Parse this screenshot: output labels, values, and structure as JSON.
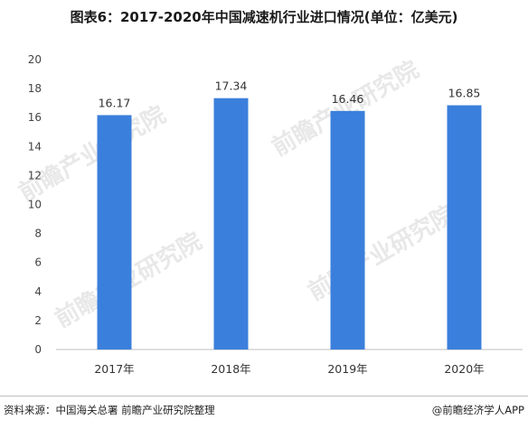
{
  "chart_data": {
    "type": "bar",
    "title": "图表6：2017-2020年中国减速机行业进口情况(单位：亿美元)",
    "categories": [
      "2017年",
      "2018年",
      "2019年",
      "2020年"
    ],
    "values": [
      16.17,
      17.34,
      16.46,
      16.85
    ],
    "data_labels": [
      "16.17",
      "17.34",
      "16.46",
      "16.85"
    ],
    "ylim": [
      0,
      20
    ],
    "yticks": [
      0,
      2,
      4,
      6,
      8,
      10,
      12,
      14,
      16,
      18,
      20
    ],
    "xlabel": "",
    "ylabel": "",
    "grid": false,
    "bar_color": "#3b7fdc"
  },
  "footer": {
    "source": "资料来源：中国海关总署 前瞻产业研究院整理",
    "credit": "@前瞻经济学人APP"
  },
  "watermark": {
    "text": "前瞻产业研究院"
  }
}
